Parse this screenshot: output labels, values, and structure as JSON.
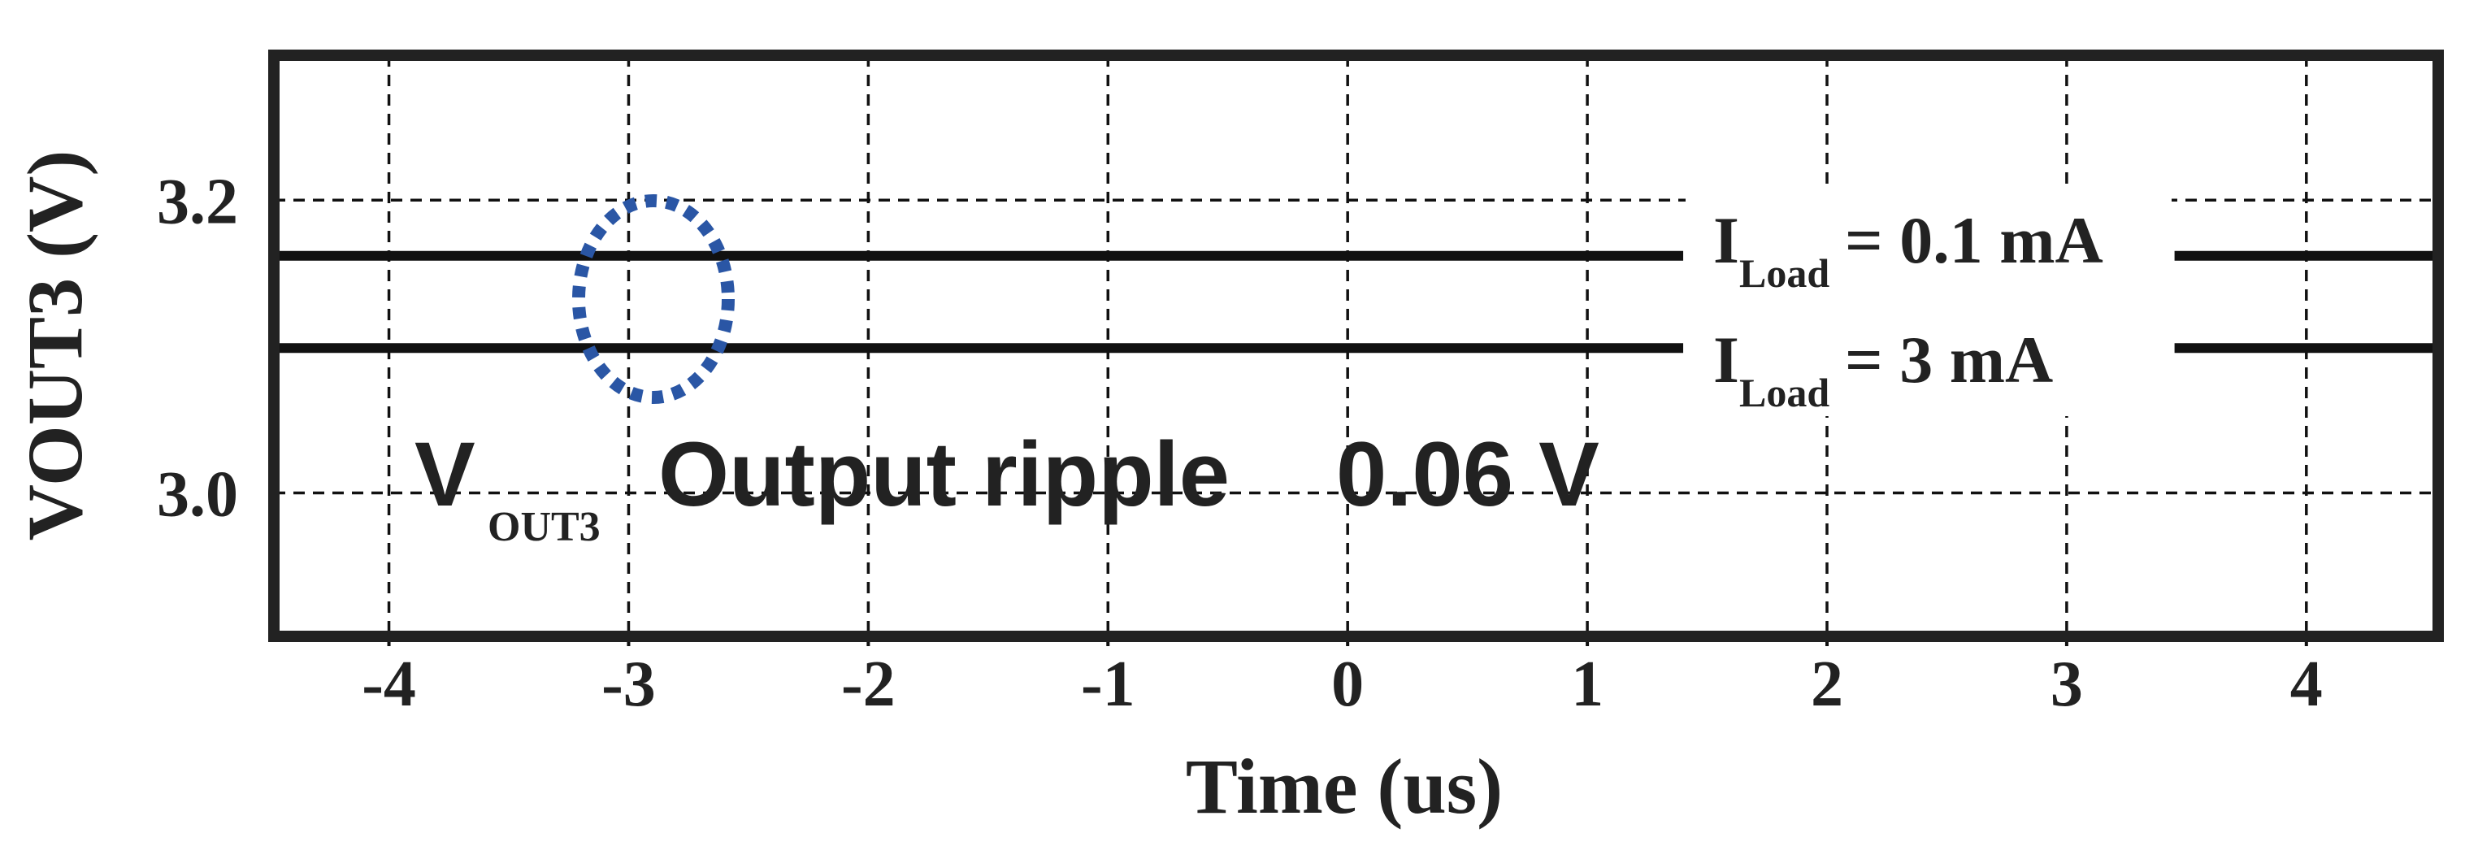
{
  "chart_data": {
    "type": "line",
    "x_label": "Time (us)",
    "y_label": "VOUT3 (V)",
    "x": [
      -4.48,
      1.4,
      2.4,
      3.45,
      4.55
    ],
    "series": [
      {
        "name": "0.1 mA",
        "color": "#111111",
        "values": [
          3.162,
          3.162,
          null,
          3.162,
          3.162
        ]
      },
      {
        "name": "3 mA",
        "color": "#111111",
        "values": [
          3.099,
          3.099,
          null,
          3.099,
          3.099
        ]
      }
    ],
    "xlim": [
      -4.48,
      4.55
    ],
    "ylim": [
      2.902,
      3.299
    ],
    "xticks": [
      -4,
      -3,
      -2,
      -1,
      0,
      1,
      2,
      3,
      4
    ],
    "yticks": [
      3.2,
      {
        "value": 3.0,
        "label": "3.0"
      }
    ],
    "grid": true,
    "legend_labels": [
      {
        "main": "I",
        "sub": "Load",
        "rest": "= 0.1 mA"
      },
      {
        "main": "I",
        "sub": "Load",
        "rest": "= 3 mA"
      }
    ],
    "annotation": {
      "main": "V",
      "sub": "OUT3",
      "text": "Output ripple",
      "value": "0.06 V",
      "color": "#2a56a5"
    }
  }
}
